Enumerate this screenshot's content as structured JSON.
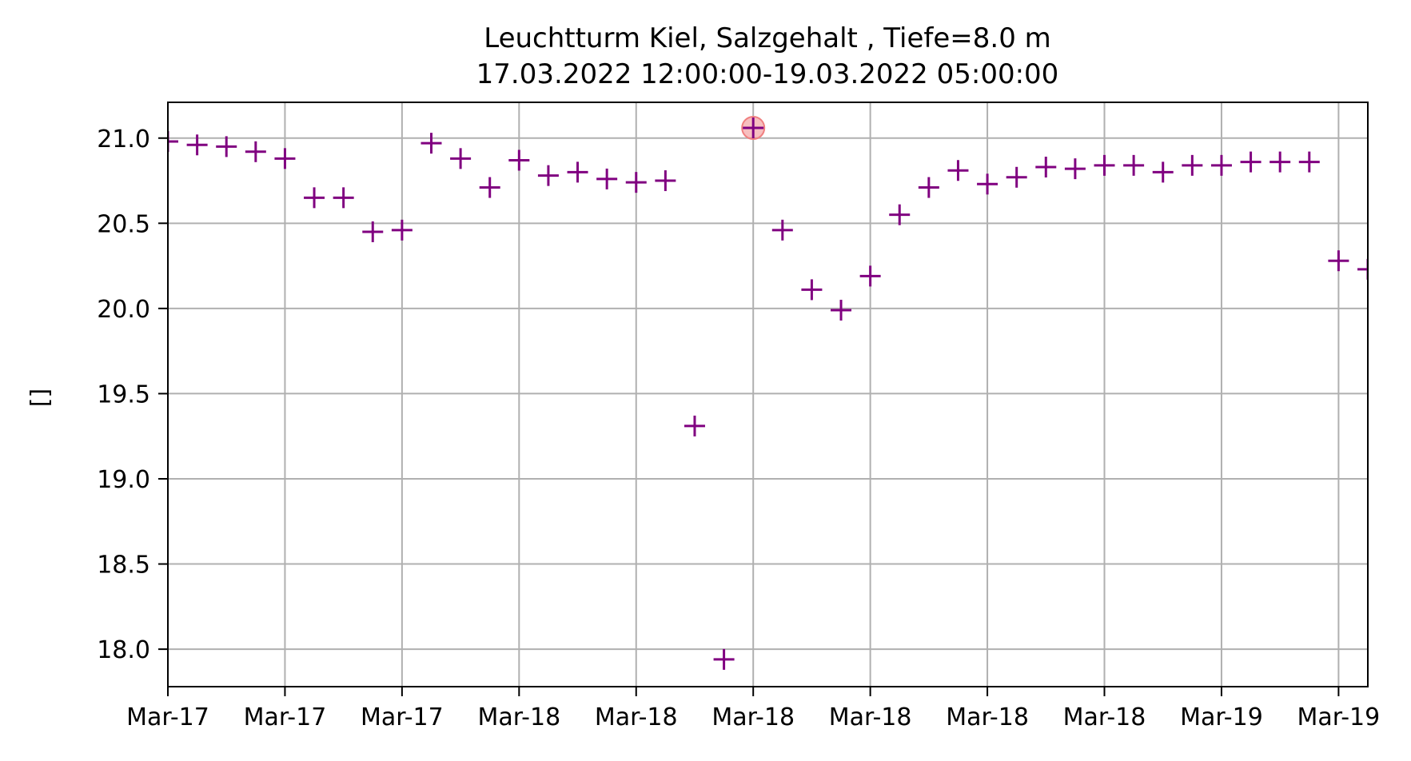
{
  "chart_data": {
    "type": "scatter",
    "title": "Leuchtturm Kiel, Salzgehalt , Tiefe=8.0 m",
    "subtitle": "17.03.2022 12:00:00-19.03.2022 05:00:00",
    "xlabel": "",
    "ylabel": "[]",
    "x_tick_labels": [
      "Mar-17",
      "Mar-17",
      "Mar-17",
      "Mar-18",
      "Mar-18",
      "Mar-18",
      "Mar-18",
      "Mar-18",
      "Mar-18",
      "Mar-19",
      "Mar-19"
    ],
    "x_tick_hours": [
      0,
      4,
      8,
      12,
      16,
      20,
      24,
      28,
      32,
      36,
      40
    ],
    "x_start": "17.03.2022 12:00:00",
    "xlim": [
      0,
      41
    ],
    "y_ticks": [
      18.0,
      18.5,
      19.0,
      19.5,
      20.0,
      20.5,
      21.0
    ],
    "y_tick_labels": [
      "18.0",
      "18.5",
      "19.0",
      "19.5",
      "20.0",
      "20.5",
      "21.0"
    ],
    "ylim": [
      17.78,
      21.21
    ],
    "grid": true,
    "marker": "plus",
    "marker_color": "#800080",
    "highlight_color": "#f08080",
    "highlight_index": 20,
    "series": [
      {
        "x": [
          0,
          1,
          2,
          3,
          4,
          5,
          6,
          7,
          8,
          9,
          10,
          11,
          12,
          13,
          14,
          15,
          16,
          17,
          18,
          19,
          20,
          21,
          22,
          23,
          24,
          25,
          26,
          27,
          28,
          29,
          30,
          31,
          32,
          33,
          34,
          35,
          36,
          37,
          38,
          39,
          40,
          41
        ],
        "y": [
          20.98,
          20.96,
          20.95,
          20.92,
          20.88,
          20.65,
          20.65,
          20.45,
          20.46,
          20.97,
          20.88,
          20.71,
          20.87,
          20.78,
          20.8,
          20.76,
          20.74,
          20.75,
          19.31,
          17.94,
          21.06,
          20.46,
          20.11,
          19.99,
          20.19,
          20.55,
          20.71,
          20.81,
          20.73,
          20.77,
          20.83,
          20.82,
          20.84,
          20.84,
          20.8,
          20.84,
          20.84,
          20.86,
          20.86,
          20.86,
          20.28,
          20.23
        ]
      }
    ]
  }
}
